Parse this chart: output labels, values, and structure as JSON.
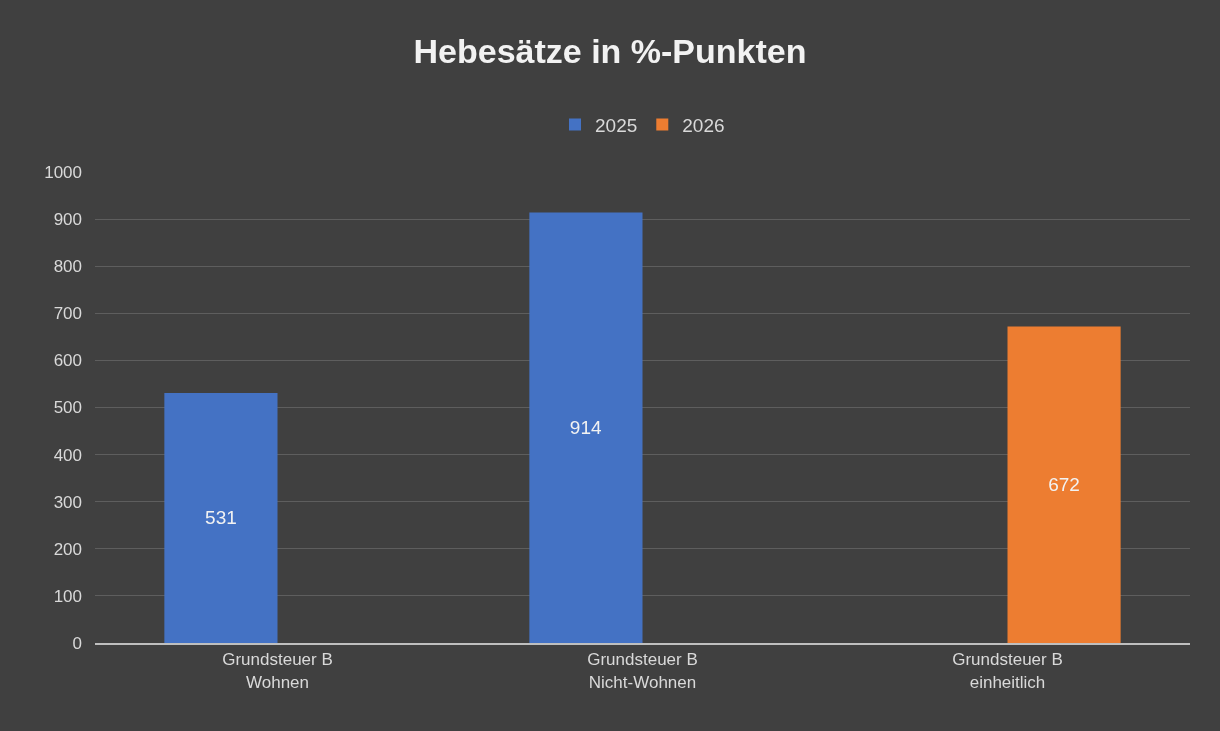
{
  "chart_data": {
    "type": "bar",
    "title": "Hebesätze in %-Punkten",
    "categories": [
      "Grundsteuer B\nWohnen",
      "Grundsteuer B\nNicht-Wohnen",
      "Grundsteuer B\neinheitlich"
    ],
    "series": [
      {
        "name": "2025",
        "color": "#4472c4",
        "values": [
          531,
          914,
          null
        ]
      },
      {
        "name": "2026",
        "color": "#ed7d31",
        "values": [
          null,
          null,
          672
        ]
      }
    ],
    "ylim": [
      0,
      1000
    ],
    "yticks": [
      0,
      100,
      200,
      300,
      400,
      500,
      600,
      700,
      800,
      900,
      1000
    ],
    "grid": "y",
    "legend": "top",
    "data_labels": true
  }
}
